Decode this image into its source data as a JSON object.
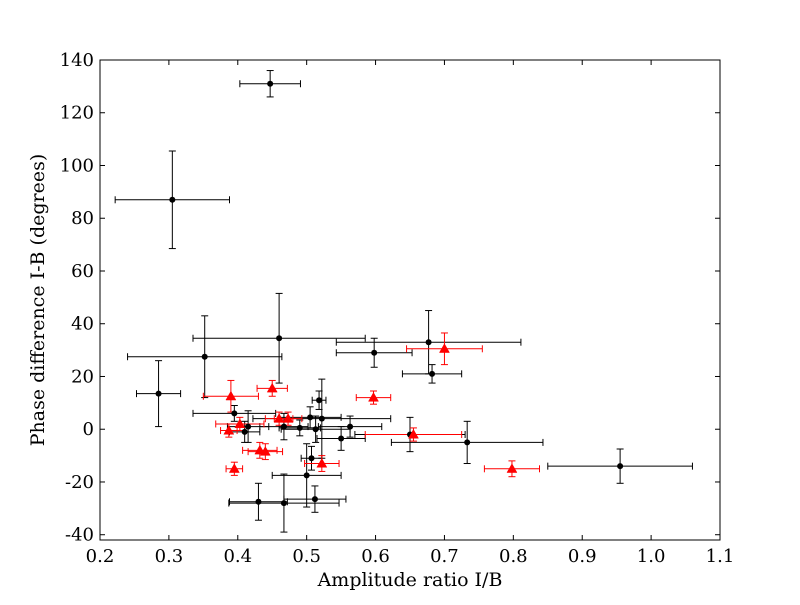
{
  "chart_data": {
    "type": "scatter",
    "title": "",
    "xlabel": "Amplitude ratio I/B",
    "ylabel": "Phase difference I-B (degrees)",
    "xlim": [
      0.2,
      1.1
    ],
    "ylim": [
      -42,
      140
    ],
    "xticks": [
      0.2,
      0.3,
      0.4,
      0.5,
      0.6,
      0.7,
      0.8,
      0.9,
      1.0,
      1.1
    ],
    "xtick_labels": [
      "0.2",
      "0.3",
      "0.4",
      "0.5",
      "0.6",
      "0.7",
      "0.8",
      "0.9",
      "1.0",
      "1.1"
    ],
    "yticks": [
      -40,
      -20,
      0,
      20,
      40,
      60,
      80,
      100,
      120,
      140
    ],
    "ytick_labels": [
      "-40",
      "-20",
      "0",
      "20",
      "40",
      "60",
      "80",
      "100",
      "120",
      "140"
    ],
    "grid": false,
    "legend": "none",
    "series": [
      {
        "marker": "circle",
        "color": "#000000",
        "points": [
          {
            "x": 0.447,
            "y": 131.0,
            "xerr": 0.044,
            "yerr": 5.0
          },
          {
            "x": 0.305,
            "y": 87.0,
            "xerr": 0.083,
            "yerr": 18.5
          },
          {
            "x": 0.46,
            "y": 34.5,
            "xerr": 0.125,
            "yerr": 17.0
          },
          {
            "x": 0.352,
            "y": 27.5,
            "xerr": 0.112,
            "yerr": 15.5
          },
          {
            "x": 0.285,
            "y": 13.5,
            "xerr": 0.032,
            "yerr": 12.5
          },
          {
            "x": 0.677,
            "y": 33.0,
            "xerr": 0.134,
            "yerr": 12.0
          },
          {
            "x": 0.598,
            "y": 29.0,
            "xerr": 0.055,
            "yerr": 5.5
          },
          {
            "x": 0.682,
            "y": 21.0,
            "xerr": 0.043,
            "yerr": 3.5
          },
          {
            "x": 0.518,
            "y": 11.0,
            "xerr": 0.01,
            "yerr": 3.5
          },
          {
            "x": 0.395,
            "y": 6.0,
            "xerr": 0.06,
            "yerr": 3.0
          },
          {
            "x": 0.505,
            "y": 4.5,
            "xerr": 0.045,
            "yerr": 4.0
          },
          {
            "x": 0.522,
            "y": 4.0,
            "xerr": 0.1,
            "yerr": 15.0
          },
          {
            "x": 0.415,
            "y": 1.0,
            "xerr": 0.03,
            "yerr": 6.0
          },
          {
            "x": 0.467,
            "y": 1.0,
            "xerr": 0.035,
            "yerr": 5.0
          },
          {
            "x": 0.49,
            "y": 0.5,
            "xerr": 0.03,
            "yerr": 3.0
          },
          {
            "x": 0.513,
            "y": 0.0,
            "xerr": 0.05,
            "yerr": 5.0
          },
          {
            "x": 0.563,
            "y": 1.0,
            "xerr": 0.046,
            "yerr": 4.0
          },
          {
            "x": 0.41,
            "y": -1.0,
            "xerr": 0.022,
            "yerr": 4.0
          },
          {
            "x": 0.55,
            "y": -3.5,
            "xerr": 0.035,
            "yerr": 4.5
          },
          {
            "x": 0.65,
            "y": -2.0,
            "xerr": 0.08,
            "yerr": 6.5
          },
          {
            "x": 0.733,
            "y": -5.0,
            "xerr": 0.11,
            "yerr": 8.0
          },
          {
            "x": 0.507,
            "y": -11.0,
            "xerr": 0.015,
            "yerr": 4.5
          },
          {
            "x": 0.5,
            "y": -17.5,
            "xerr": 0.05,
            "yerr": 12.0
          },
          {
            "x": 0.955,
            "y": -14.0,
            "xerr": 0.105,
            "yerr": 6.5
          },
          {
            "x": 0.43,
            "y": -27.5,
            "xerr": 0.042,
            "yerr": 7.0
          },
          {
            "x": 0.467,
            "y": -28.0,
            "xerr": 0.08,
            "yerr": 11.0
          },
          {
            "x": 0.512,
            "y": -26.5,
            "xerr": 0.045,
            "yerr": 5.0
          }
        ]
      },
      {
        "marker": "triangle",
        "color": "#ff0000",
        "points": [
          {
            "x": 0.7,
            "y": 30.5,
            "xerr": 0.055,
            "yerr": 6.0
          },
          {
            "x": 0.45,
            "y": 15.5,
            "xerr": 0.022,
            "yerr": 3.0
          },
          {
            "x": 0.39,
            "y": 12.5,
            "xerr": 0.04,
            "yerr": 6.0
          },
          {
            "x": 0.597,
            "y": 12.0,
            "xerr": 0.025,
            "yerr": 2.5
          },
          {
            "x": 0.46,
            "y": 4.0,
            "xerr": 0.02,
            "yerr": 2.5
          },
          {
            "x": 0.473,
            "y": 4.0,
            "xerr": 0.02,
            "yerr": 2.5
          },
          {
            "x": 0.403,
            "y": 2.0,
            "xerr": 0.035,
            "yerr": 2.5
          },
          {
            "x": 0.387,
            "y": -0.5,
            "xerr": 0.012,
            "yerr": 2.5
          },
          {
            "x": 0.655,
            "y": -2.0,
            "xerr": 0.07,
            "yerr": 2.5
          },
          {
            "x": 0.432,
            "y": -8.0,
            "xerr": 0.025,
            "yerr": 3.0
          },
          {
            "x": 0.44,
            "y": -8.5,
            "xerr": 0.025,
            "yerr": 3.0
          },
          {
            "x": 0.522,
            "y": -13.0,
            "xerr": 0.025,
            "yerr": 3.0
          },
          {
            "x": 0.395,
            "y": -15.0,
            "xerr": 0.012,
            "yerr": 2.5
          },
          {
            "x": 0.798,
            "y": -15.0,
            "xerr": 0.04,
            "yerr": 3.0
          }
        ]
      }
    ]
  }
}
